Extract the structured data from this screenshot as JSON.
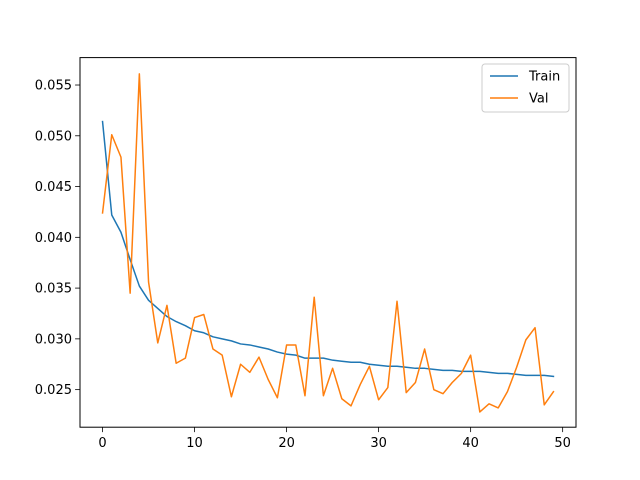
{
  "chart_data": {
    "type": "line",
    "title": "",
    "xlabel": "",
    "ylabel": "",
    "xlim": [
      -2.45,
      51.45
    ],
    "ylim": [
      0.0213,
      0.0577
    ],
    "x_ticks": [
      0,
      10,
      20,
      30,
      40,
      50
    ],
    "x_tick_labels": [
      "0",
      "10",
      "20",
      "30",
      "40",
      "50"
    ],
    "y_ticks": [
      0.025,
      0.03,
      0.035,
      0.04,
      0.045,
      0.05,
      0.055
    ],
    "y_tick_labels": [
      "0.025",
      "0.030",
      "0.035",
      "0.040",
      "0.045",
      "0.050",
      "0.055"
    ],
    "grid": false,
    "legend_position": "top-right",
    "x": [
      0,
      1,
      2,
      3,
      4,
      5,
      6,
      7,
      8,
      9,
      10,
      11,
      12,
      13,
      14,
      15,
      16,
      17,
      18,
      19,
      20,
      21,
      22,
      23,
      24,
      25,
      26,
      27,
      28,
      29,
      30,
      31,
      32,
      33,
      34,
      35,
      36,
      37,
      38,
      39,
      40,
      41,
      42,
      43,
      44,
      45,
      46,
      47,
      48,
      49
    ],
    "series": [
      {
        "name": "Train",
        "color": "#1f77b4",
        "values": [
          0.0514,
          0.0422,
          0.0405,
          0.0378,
          0.0352,
          0.0338,
          0.033,
          0.0322,
          0.0317,
          0.0313,
          0.0308,
          0.0306,
          0.0302,
          0.03,
          0.0298,
          0.0295,
          0.0294,
          0.0292,
          0.029,
          0.0287,
          0.0285,
          0.0284,
          0.0281,
          0.0281,
          0.0281,
          0.0279,
          0.0278,
          0.0277,
          0.0277,
          0.0275,
          0.0274,
          0.0273,
          0.0273,
          0.0272,
          0.0271,
          0.0271,
          0.027,
          0.0269,
          0.0269,
          0.0268,
          0.0268,
          0.0268,
          0.0267,
          0.0266,
          0.0266,
          0.0265,
          0.0264,
          0.0264,
          0.0264,
          0.0263
        ]
      },
      {
        "name": "Val",
        "color": "#ff7f0e",
        "values": [
          0.0424,
          0.0501,
          0.0479,
          0.0345,
          0.0561,
          0.0356,
          0.0296,
          0.0333,
          0.0276,
          0.0281,
          0.0321,
          0.0324,
          0.029,
          0.0284,
          0.0243,
          0.0275,
          0.0267,
          0.0282,
          0.026,
          0.0242,
          0.0294,
          0.0294,
          0.0244,
          0.0341,
          0.0244,
          0.0271,
          0.0241,
          0.0234,
          0.0255,
          0.0273,
          0.024,
          0.0252,
          0.0337,
          0.0247,
          0.0257,
          0.029,
          0.025,
          0.0246,
          0.0257,
          0.0266,
          0.0284,
          0.0228,
          0.0236,
          0.0232,
          0.0248,
          0.0272,
          0.0299,
          0.0311,
          0.0235,
          0.0248
        ]
      }
    ]
  }
}
